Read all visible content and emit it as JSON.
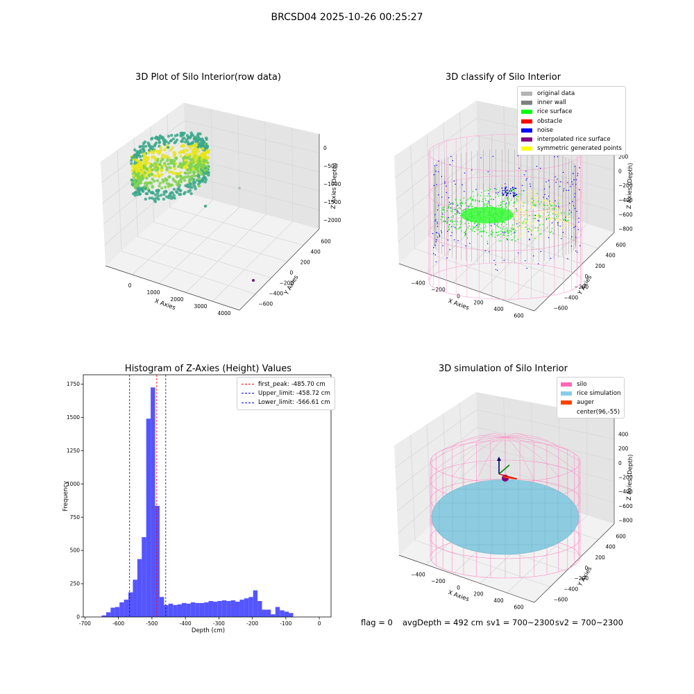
{
  "suptitle": "BRCSD04 2025-10-26 00:25:27",
  "status": {
    "flag": "flag = 0",
    "avg_depth": "avgDepth = 492 cm",
    "sv1": "sv1 = 700~2300",
    "sv2": "sv2 = 700~2300"
  },
  "chart_data": [
    {
      "type": "scatter",
      "title": "3D Plot of Silo Interior(row data)",
      "xlabel": "X Axies",
      "ylabel": "Y Axies",
      "zlabel": "Z Axies (Depth)",
      "x_ticks": [
        "0",
        "1000",
        "2000",
        "3000",
        "4000"
      ],
      "y_ticks": [
        "600",
        "400",
        "200",
        "0",
        "−200",
        "−400",
        "−600"
      ],
      "z_ticks": [
        "0",
        "−500",
        "−1000",
        "−1500",
        "−2000"
      ],
      "colors": {
        "low": "#3aa88a",
        "mid": "#7fd34e",
        "high": "#e8e51a",
        "outlier": "#6a1b7a"
      }
    },
    {
      "type": "scatter",
      "title": "3D classify of Silo Interior",
      "xlabel": "X Axies",
      "ylabel": "Y Axies",
      "zlabel": "Z Axies (Depth)",
      "x_ticks": [
        "−400",
        "−200",
        "0",
        "200",
        "400",
        "600"
      ],
      "y_ticks": [
        "600",
        "400",
        "200",
        "0",
        "−200",
        "−400",
        "−600"
      ],
      "z_ticks": [
        "200",
        "0",
        "−200",
        "−400",
        "−600",
        "−800"
      ],
      "z_top_tick": "0",
      "legend": [
        {
          "label": "original data",
          "color": "#b3b3b3"
        },
        {
          "label": "inner wall",
          "color": "#808080"
        },
        {
          "label": "rice surface",
          "color": "#00ff00"
        },
        {
          "label": "obstacle",
          "color": "#ff0000"
        },
        {
          "label": "noise",
          "color": "#0000ff"
        },
        {
          "label": "interpolated rice surface",
          "color": "#800080"
        },
        {
          "label": "symmetric generated points",
          "color": "#ffff00"
        }
      ]
    },
    {
      "type": "bar",
      "title": "Histogram of Z-Axies (Height) Values",
      "xlabel": "Depth (cm)",
      "ylabel": "Frequency",
      "xlim": [
        -705,
        35
      ],
      "ylim": [
        0,
        1820
      ],
      "x_ticks": [
        -700,
        -600,
        -500,
        -400,
        -300,
        -200,
        -100,
        0
      ],
      "y_ticks": [
        0,
        250,
        500,
        750,
        1000,
        1250,
        1500,
        1750
      ],
      "bin_start": -650,
      "bin_width": 13.3,
      "values": [
        12,
        35,
        70,
        75,
        110,
        130,
        185,
        280,
        435,
        600,
        1490,
        1725,
        835,
        150,
        90,
        100,
        90,
        95,
        105,
        100,
        110,
        105,
        105,
        110,
        120,
        115,
        120,
        125,
        120,
        125,
        115,
        130,
        140,
        150,
        200,
        120,
        55,
        55,
        20,
        75,
        50,
        40,
        30
      ],
      "bar_color": "#5555ff",
      "legend": [
        {
          "label": "first_peak: -485.70 cm",
          "value": -485.7,
          "color": "#ff0000"
        },
        {
          "label": "Upper_limit: -458.72 cm",
          "value": -458.72,
          "color": "#0000cc"
        },
        {
          "label": "Lower_limit: -566.61 cm",
          "value": -566.61,
          "color": "#0000cc"
        }
      ]
    },
    {
      "type": "scatter",
      "title": "3D simulation of Silo Interior",
      "xlabel": "X Axies",
      "ylabel": "Y Axies",
      "zlabel": "Z Axies (Depth)",
      "x_ticks": [
        "−400",
        "−200",
        "0",
        "200",
        "400",
        "600"
      ],
      "y_ticks": [
        "600",
        "400",
        "200",
        "0",
        "−200",
        "−400",
        "−600"
      ],
      "z_ticks": [
        "400",
        "200",
        "0",
        "−200",
        "−400",
        "−600",
        "−800"
      ],
      "legend": [
        {
          "label": "silo",
          "color": "#ff69b4"
        },
        {
          "label": "rice simulation",
          "color": "#87ceeb"
        },
        {
          "label": "auger",
          "color": "#ff4500"
        },
        {
          "label": "center(96,-55)",
          "color": "#ffffff"
        }
      ]
    }
  ]
}
